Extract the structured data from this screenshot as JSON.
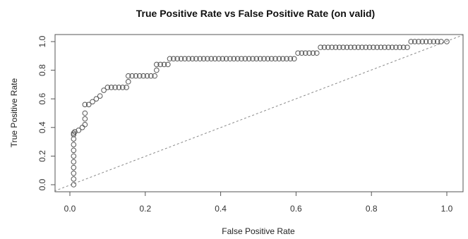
{
  "chart_data": {
    "type": "scatter",
    "title": "True Positive Rate vs False Positive Rate (on valid)",
    "xlabel": "False Positive Rate",
    "ylabel": "True Positive Rate",
    "xlim": [
      0,
      1
    ],
    "ylim": [
      0,
      1
    ],
    "xticks": [
      "0.0",
      "0.2",
      "0.4",
      "0.6",
      "0.8",
      "1.0"
    ],
    "yticks": [
      "0.0",
      "0.2",
      "0.4",
      "0.6",
      "0.8",
      "1.0"
    ],
    "grid": false,
    "legend": "none",
    "marker": "open-circle",
    "marker_color": "#555555",
    "diagonal": {
      "from": [
        0,
        0
      ],
      "to": [
        1,
        1
      ],
      "style": "dashed",
      "color": "#888888"
    },
    "series": [
      {
        "x": [
          0.01,
          0.01,
          0.01,
          0.01,
          0.01,
          0.01,
          0.01,
          0.01,
          0.01,
          0.01,
          0.01,
          0.013,
          0.023,
          0.033,
          0.04,
          0.04,
          0.04,
          0.04,
          0.05,
          0.06,
          0.07,
          0.08,
          0.09,
          0.1,
          0.11,
          0.12,
          0.13,
          0.14,
          0.15,
          0.155,
          0.155,
          0.165,
          0.175,
          0.185,
          0.195,
          0.205,
          0.215,
          0.225,
          0.23,
          0.23,
          0.24,
          0.25,
          0.26,
          0.265,
          0.275,
          0.285,
          0.295,
          0.305,
          0.315,
          0.325,
          0.335,
          0.345,
          0.355,
          0.365,
          0.375,
          0.385,
          0.395,
          0.405,
          0.415,
          0.425,
          0.435,
          0.445,
          0.455,
          0.465,
          0.475,
          0.485,
          0.495,
          0.505,
          0.515,
          0.525,
          0.535,
          0.545,
          0.555,
          0.565,
          0.575,
          0.585,
          0.595,
          0.605,
          0.615,
          0.625,
          0.635,
          0.645,
          0.655,
          0.665,
          0.675,
          0.685,
          0.695,
          0.705,
          0.715,
          0.725,
          0.735,
          0.745,
          0.755,
          0.765,
          0.775,
          0.785,
          0.795,
          0.805,
          0.815,
          0.825,
          0.835,
          0.845,
          0.855,
          0.865,
          0.875,
          0.885,
          0.895,
          0.905,
          0.915,
          0.925,
          0.935,
          0.945,
          0.955,
          0.965,
          0.975,
          0.985,
          1.0
        ],
        "y": [
          0.0,
          0.04,
          0.08,
          0.12,
          0.16,
          0.2,
          0.24,
          0.28,
          0.32,
          0.35,
          0.36,
          0.37,
          0.38,
          0.4,
          0.42,
          0.46,
          0.5,
          0.56,
          0.56,
          0.58,
          0.6,
          0.62,
          0.66,
          0.68,
          0.68,
          0.68,
          0.68,
          0.68,
          0.68,
          0.72,
          0.76,
          0.76,
          0.76,
          0.76,
          0.76,
          0.76,
          0.76,
          0.76,
          0.8,
          0.84,
          0.84,
          0.84,
          0.84,
          0.88,
          0.88,
          0.88,
          0.88,
          0.88,
          0.88,
          0.88,
          0.88,
          0.88,
          0.88,
          0.88,
          0.88,
          0.88,
          0.88,
          0.88,
          0.88,
          0.88,
          0.88,
          0.88,
          0.88,
          0.88,
          0.88,
          0.88,
          0.88,
          0.88,
          0.88,
          0.88,
          0.88,
          0.88,
          0.88,
          0.88,
          0.88,
          0.88,
          0.88,
          0.92,
          0.92,
          0.92,
          0.92,
          0.92,
          0.92,
          0.96,
          0.96,
          0.96,
          0.96,
          0.96,
          0.96,
          0.96,
          0.96,
          0.96,
          0.96,
          0.96,
          0.96,
          0.96,
          0.96,
          0.96,
          0.96,
          0.96,
          0.96,
          0.96,
          0.96,
          0.96,
          0.96,
          0.96,
          0.96,
          1.0,
          1.0,
          1.0,
          1.0,
          1.0,
          1.0,
          1.0,
          1.0,
          1.0,
          1.0
        ]
      }
    ]
  }
}
